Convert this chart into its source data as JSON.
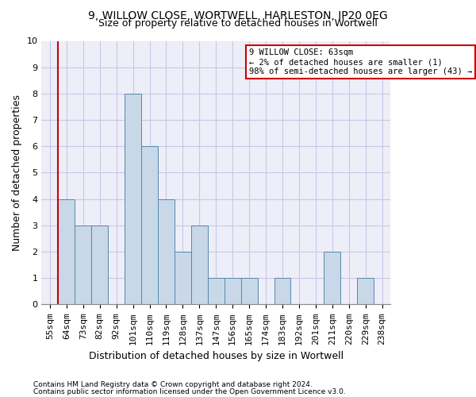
{
  "title1": "9, WILLOW CLOSE, WORTWELL, HARLESTON, IP20 0EG",
  "title2": "Size of property relative to detached houses in Wortwell",
  "xlabel": "Distribution of detached houses by size in Wortwell",
  "ylabel": "Number of detached properties",
  "footnote1": "Contains HM Land Registry data © Crown copyright and database right 2024.",
  "footnote2": "Contains public sector information licensed under the Open Government Licence v3.0.",
  "categories": [
    "55sqm",
    "64sqm",
    "73sqm",
    "82sqm",
    "92sqm",
    "101sqm",
    "110sqm",
    "119sqm",
    "128sqm",
    "137sqm",
    "147sqm",
    "156sqm",
    "165sqm",
    "174sqm",
    "183sqm",
    "192sqm",
    "201sqm",
    "211sqm",
    "220sqm",
    "229sqm",
    "238sqm"
  ],
  "values": [
    0,
    4,
    3,
    3,
    0,
    8,
    6,
    4,
    2,
    3,
    1,
    1,
    1,
    0,
    1,
    0,
    0,
    2,
    0,
    1,
    0
  ],
  "bar_color": "#c8d8e8",
  "bar_edge_color": "#5588aa",
  "annotation_line1": "9 WILLOW CLOSE: 63sqm",
  "annotation_line2": "← 2% of detached houses are smaller (1)",
  "annotation_line3": "98% of semi-detached houses are larger (43) →",
  "annotation_box_facecolor": "#ffffff",
  "annotation_box_edgecolor": "#cc0000",
  "vline_color": "#cc0000",
  "vline_x": 0.5,
  "ylim": [
    0,
    10
  ],
  "yticks": [
    0,
    1,
    2,
    3,
    4,
    5,
    6,
    7,
    8,
    9,
    10
  ],
  "grid_color": "#c8c8e8",
  "background_color": "#eeeef8",
  "title1_fontsize": 10,
  "title2_fontsize": 9,
  "ylabel_fontsize": 9,
  "xlabel_fontsize": 9,
  "footnote_fontsize": 6.5,
  "tick_fontsize": 8,
  "annot_fontsize": 7.5
}
